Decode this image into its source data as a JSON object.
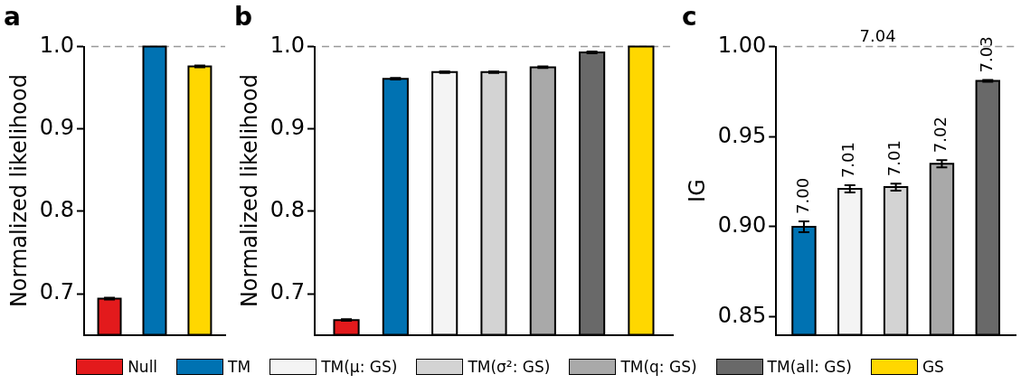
{
  "chart_data": [
    {
      "type": "bar",
      "title": "a",
      "ylabel": "Normalized likelihood",
      "categories": [
        null
      ],
      "ylim": [
        0.65,
        1.0
      ],
      "yticks": [
        0.7,
        0.8,
        0.9,
        {
          "value": 1.0,
          "label": "1.0"
        }
      ],
      "tick_labels": "y",
      "ref_lines": [
        {
          "axis": "y",
          "value": 1.0,
          "color": "#999999",
          "line_style": "dashed"
        }
      ],
      "series": [
        {
          "color": "#e31a1c",
          "values": [
            0.694
          ],
          "errors": [
            0.001
          ]
        },
        {
          "color": "#0072b2",
          "values": [
            1.0
          ]
        },
        {
          "color": "#ffd700",
          "values": [
            0.976
          ],
          "errors": [
            0.001
          ]
        }
      ]
    },
    {
      "type": "bar",
      "title": "b",
      "ylabel": "Normalized likelihood",
      "categories": [
        null
      ],
      "ylim": [
        0.65,
        1.0
      ],
      "yticks": [
        0.7,
        0.8,
        0.9,
        {
          "value": 1.0,
          "label": "1.0"
        }
      ],
      "tick_labels": "y",
      "legend": "bottom",
      "ref_lines": [
        {
          "axis": "y",
          "value": 1.0,
          "color": "#999999",
          "line_style": "dashed"
        }
      ],
      "series": [
        {
          "name": "Null",
          "color": "#e31a1c",
          "values": [
            0.668
          ],
          "errors": [
            0.001
          ]
        },
        {
          "name": "TM",
          "color": "#0072b2",
          "values": [
            0.961
          ],
          "errors": [
            0.001
          ]
        },
        {
          "name": "TM(μ: GS)",
          "color": "#f4f4f4",
          "values": [
            0.969
          ],
          "errors": [
            0.001
          ]
        },
        {
          "name": "TM(σ²: GS)",
          "color": "#d3d3d3",
          "values": [
            0.969
          ],
          "errors": [
            0.001
          ]
        },
        {
          "name": "TM(q: GS)",
          "color": "#a9a9a9",
          "values": [
            0.975
          ],
          "errors": [
            0.001
          ]
        },
        {
          "name": "TM(all: GS)",
          "color": "#696969",
          "values": [
            0.993
          ],
          "errors": [
            0.001
          ]
        },
        {
          "name": "GS",
          "color": "#ffd700",
          "values": [
            1.0
          ]
        }
      ]
    },
    {
      "type": "bar",
      "title": "c",
      "ylabel": "IG",
      "categories": [
        null
      ],
      "ylim": [
        0.84,
        1.0
      ],
      "yticks": [
        {
          "value": 0.85,
          "label": "0.85"
        },
        {
          "value": 0.9,
          "label": "0.90"
        },
        {
          "value": 0.95,
          "label": "0.95"
        },
        {
          "value": 1.0,
          "label": "1.00"
        }
      ],
      "tick_labels": "y",
      "ref_lines": [
        {
          "axis": "y",
          "value": 1.0,
          "color": "#999999",
          "line_style": "dashed"
        }
      ],
      "annotations": [
        {
          "text": "7.00",
          "y": 0.9
        },
        {
          "text": "7.01",
          "y": 0.921
        },
        {
          "text": "7.01",
          "y": 0.922
        },
        {
          "text": "7.02",
          "y": 0.935
        },
        {
          "text": "7.03",
          "y": 0.981
        },
        {
          "text": "7.04",
          "y": 1.0
        }
      ],
      "series": [
        {
          "color": "#0072b2",
          "values": [
            0.9
          ],
          "errors": [
            0.003
          ]
        },
        {
          "color": "#f4f4f4",
          "values": [
            0.921
          ],
          "errors": [
            0.002
          ]
        },
        {
          "color": "#d3d3d3",
          "values": [
            0.922
          ],
          "errors": [
            0.002
          ]
        },
        {
          "color": "#a9a9a9",
          "values": [
            0.935
          ],
          "errors": [
            0.002
          ]
        },
        {
          "color": "#696969",
          "values": [
            0.981
          ],
          "errors": [
            0.0005
          ]
        }
      ]
    }
  ]
}
